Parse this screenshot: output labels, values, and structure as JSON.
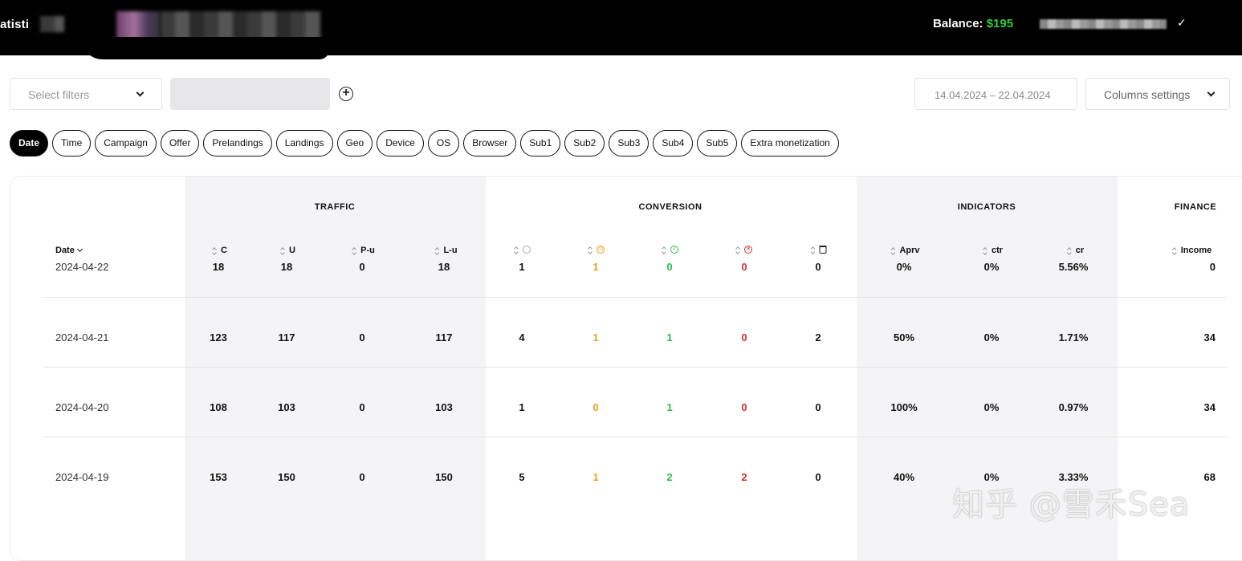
{
  "header": {
    "title": "atisti",
    "balance_label": "Balance:",
    "balance_value": "$195"
  },
  "toolbar": {
    "filters_placeholder": "Select filters",
    "date_range": "14.04.2024  –  22.04.2024",
    "columns_settings_label": "Columns settings"
  },
  "tabs": [
    {
      "label": "Date",
      "active": true
    },
    {
      "label": "Time"
    },
    {
      "label": "Campaign"
    },
    {
      "label": "Offer"
    },
    {
      "label": "Prelandings"
    },
    {
      "label": "Landings"
    },
    {
      "label": "Geo"
    },
    {
      "label": "Device"
    },
    {
      "label": "OS"
    },
    {
      "label": "Browser"
    },
    {
      "label": "Sub1"
    },
    {
      "label": "Sub2"
    },
    {
      "label": "Sub3"
    },
    {
      "label": "Sub4"
    },
    {
      "label": "Sub5"
    },
    {
      "label": "Extra monetization"
    }
  ],
  "table": {
    "groups": {
      "traffic": "TRAFFIC",
      "conversion": "CONVERSION",
      "indicators": "INDICATORS",
      "finance": "FINANCE"
    },
    "columns": {
      "date": "Date",
      "c": "C",
      "u": "U",
      "pu": "P-u",
      "lu": "L-u",
      "aprv": "Aprv",
      "ctr": "ctr",
      "cr": "cr",
      "income": "Income"
    },
    "conversion_icons": [
      "circle-icon",
      "clock-icon",
      "check-circle-icon",
      "x-circle-icon",
      "trash-icon"
    ],
    "rows": [
      {
        "date": "2024-04-22",
        "c": "18",
        "u": "18",
        "pu": "0",
        "lu": "18",
        "conv_all": "1",
        "conv_pending": "1",
        "conv_approved": "0",
        "conv_rejected": "0",
        "conv_trash": "0",
        "aprv": "0%",
        "ctr": "0%",
        "cr": "5.56%",
        "income": "0"
      },
      {
        "date": "2024-04-21",
        "c": "123",
        "u": "117",
        "pu": "0",
        "lu": "117",
        "conv_all": "4",
        "conv_pending": "1",
        "conv_approved": "1",
        "conv_rejected": "0",
        "conv_trash": "2",
        "aprv": "50%",
        "ctr": "0%",
        "cr": "1.71%",
        "income": "34"
      },
      {
        "date": "2024-04-20",
        "c": "108",
        "u": "103",
        "pu": "0",
        "lu": "103",
        "conv_all": "1",
        "conv_pending": "0",
        "conv_approved": "1",
        "conv_rejected": "0",
        "conv_trash": "0",
        "aprv": "100%",
        "ctr": "0%",
        "cr": "0.97%",
        "income": "34"
      },
      {
        "date": "2024-04-19",
        "c": "153",
        "u": "150",
        "pu": "0",
        "lu": "150",
        "conv_all": "5",
        "conv_pending": "1",
        "conv_approved": "2",
        "conv_rejected": "2",
        "conv_trash": "0",
        "aprv": "40%",
        "ctr": "0%",
        "cr": "3.33%",
        "income": "68"
      }
    ]
  },
  "watermark": "知乎 @雪禾Sea",
  "colors": {
    "balance": "#2ecc40",
    "pending": "#e5a020",
    "approved": "#2ebd4a",
    "rejected": "#d32f2f"
  }
}
